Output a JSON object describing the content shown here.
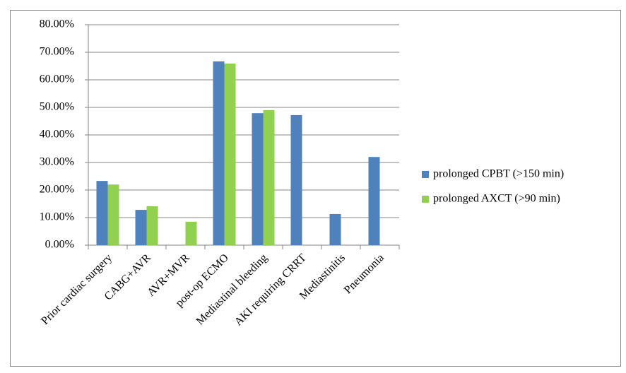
{
  "chart_data": {
    "type": "bar",
    "categories": [
      "Prior cardiac surgery",
      "CABG+AVR",
      "AVR+MVR",
      "post-op ECMO",
      "Mediastinal bleeding",
      "AKI requiring CRRT",
      "Mediastinitis",
      "Pneumonia"
    ],
    "series": [
      {
        "name": "prolonged CPBT (>150 min)",
        "color": "#4f81bd",
        "values": [
          23.3,
          12.8,
          null,
          66.7,
          47.9,
          47.2,
          11.3,
          32
        ]
      },
      {
        "name": "prolonged AXCT (>90 min)",
        "color": "#92d050",
        "values": [
          22,
          14.1,
          8.5,
          65.9,
          49,
          null,
          null,
          null
        ]
      }
    ],
    "ylim": [
      0,
      80
    ],
    "yticks": [
      {
        "value": 0,
        "label": "0.00%"
      },
      {
        "value": 10,
        "label": "10.00%"
      },
      {
        "value": 20,
        "label": "20.00%"
      },
      {
        "value": 30,
        "label": "30.00%"
      },
      {
        "value": 40,
        "label": "40.00%"
      },
      {
        "value": 50,
        "label": "50.00%"
      },
      {
        "value": 60,
        "label": "60.00%"
      },
      {
        "value": 70,
        "label": "70.00%"
      },
      {
        "value": 80,
        "label": "80.00%"
      }
    ],
    "grid": true,
    "legend": "right"
  }
}
